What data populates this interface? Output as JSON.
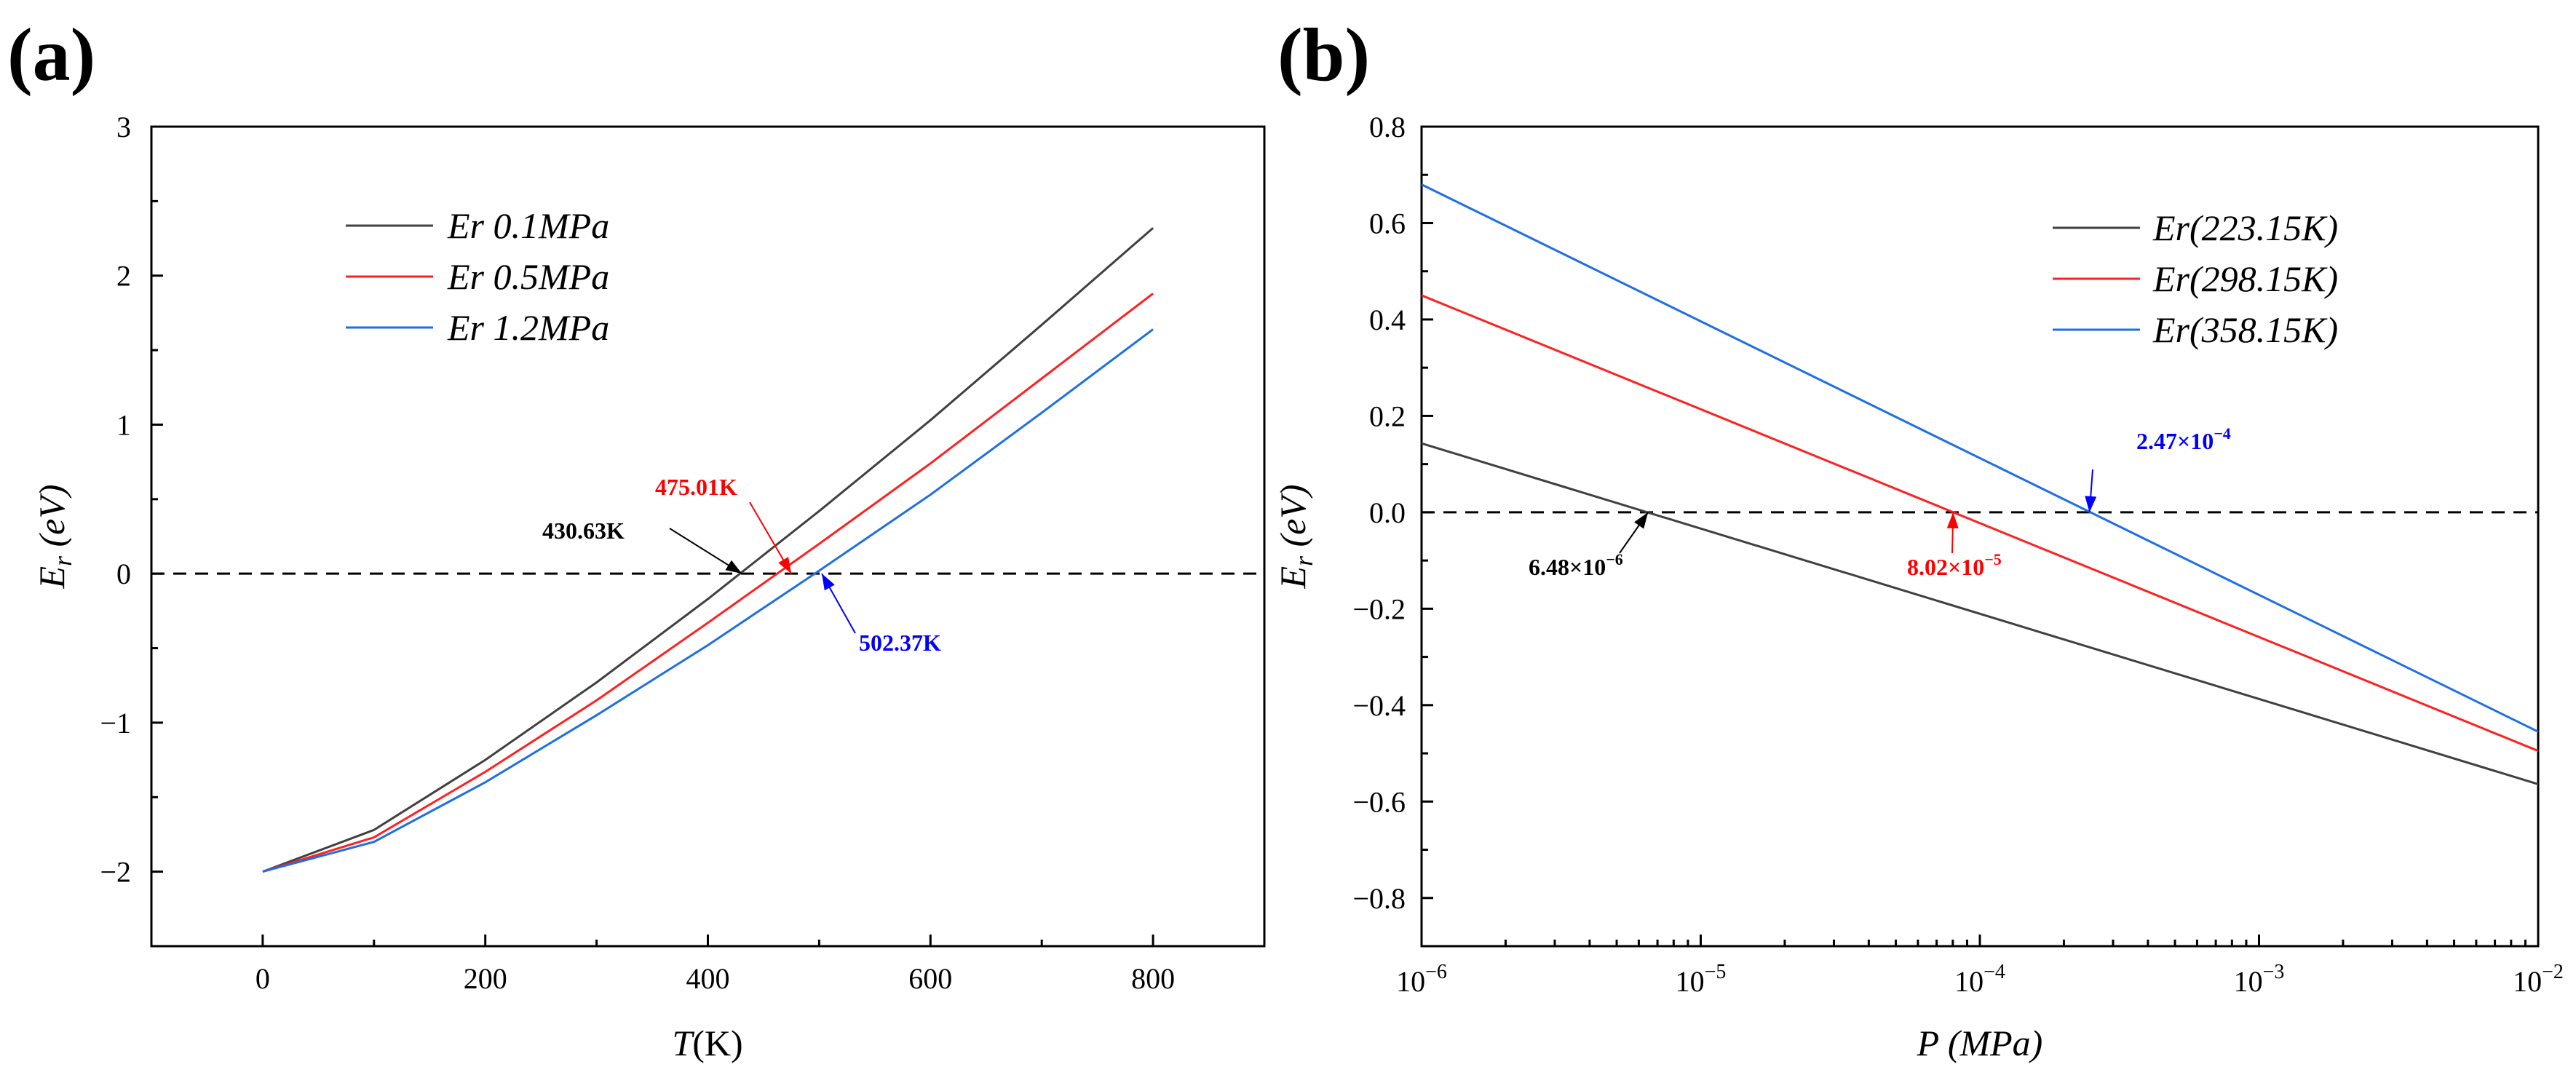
{
  "figure": {
    "panels": [
      "(a)",
      "(b)"
    ]
  },
  "chart_data": [
    {
      "type": "line",
      "panel_label": "(a)",
      "xlabel_main": "T",
      "xlabel_unit": "(K)",
      "ylabel_main": "E",
      "ylabel_sub": "r",
      "ylabel_unit": " (eV)",
      "xlim": [
        -100,
        900
      ],
      "ylim": [
        -2.5,
        3
      ],
      "xscale": "linear",
      "xticks": [
        0,
        200,
        400,
        600,
        800
      ],
      "xtick_labels": [
        "0",
        "200",
        "400",
        "600",
        "800"
      ],
      "yticks": [
        -2,
        -1,
        0,
        1,
        2,
        3
      ],
      "ytick_labels": [
        "−2",
        "−1",
        "0",
        "1",
        "2",
        "3"
      ],
      "reference_line_y": 0,
      "legend_position": "top-left",
      "series": [
        {
          "name": "Er 0.1MPa",
          "color": "#404040",
          "x": [
            0,
            100,
            200,
            300,
            400,
            500,
            600,
            700,
            800
          ],
          "y": [
            -2.0,
            -1.72,
            -1.25,
            -0.73,
            -0.17,
            0.42,
            1.03,
            1.67,
            2.32
          ]
        },
        {
          "name": "Er 0.5MPa",
          "color": "#ff2020",
          "x": [
            0,
            100,
            200,
            300,
            400,
            500,
            600,
            700,
            800
          ],
          "y": [
            -2.0,
            -1.77,
            -1.33,
            -0.85,
            -0.33,
            0.2,
            0.74,
            1.31,
            1.88
          ]
        },
        {
          "name": "Er 1.2MPa",
          "color": "#1e6ee6",
          "x": [
            0,
            100,
            200,
            300,
            400,
            500,
            600,
            700,
            800
          ],
          "y": [
            -2.0,
            -1.8,
            -1.4,
            -0.95,
            -0.48,
            0.02,
            0.53,
            1.08,
            1.64
          ]
        }
      ],
      "annotations": [
        {
          "text": "430.63K",
          "color": "#000000",
          "x": 430.63,
          "y": 0
        },
        {
          "text": "475.01K",
          "color": "#ff0000",
          "x": 475.01,
          "y": 0
        },
        {
          "text": "502.37K",
          "color": "#0000ff",
          "x": 502.37,
          "y": 0
        }
      ]
    },
    {
      "type": "line",
      "panel_label": "(b)",
      "xlabel_main": "P",
      "xlabel_unit": " (MPa)",
      "ylabel_main": "E",
      "ylabel_sub": "r",
      "ylabel_unit": " (eV)",
      "xlim": [
        1e-06,
        0.01
      ],
      "ylim": [
        -0.9,
        0.8
      ],
      "xscale": "log",
      "xtick_exponents": [
        -6,
        -5,
        -4,
        -3,
        -2
      ],
      "xtick_base": "10",
      "xtick_sups": [
        "−6",
        "−5",
        "−4",
        "−3",
        "−2"
      ],
      "yticks": [
        -0.8,
        -0.6,
        -0.4,
        -0.2,
        0,
        0.2,
        0.4,
        0.6,
        0.8
      ],
      "ytick_labels": [
        "−0.8",
        "−0.6",
        "−0.4",
        "−0.2",
        "0.0",
        "0.2",
        "0.4",
        "0.6",
        "0.8"
      ],
      "reference_line_y": 0,
      "legend_position": "top-right",
      "series": [
        {
          "name": "Er(223.15K)",
          "color": "#404040",
          "x": [
            1e-06,
            0.01
          ],
          "y": [
            0.143,
            -0.564
          ]
        },
        {
          "name": "Er(298.15K)",
          "color": "#ff2020",
          "x": [
            1e-06,
            0.01
          ],
          "y": [
            0.45,
            -0.495
          ]
        },
        {
          "name": "Er(358.15K)",
          "color": "#1e6ee6",
          "x": [
            1e-06,
            0.01
          ],
          "y": [
            0.68,
            -0.455
          ]
        }
      ],
      "annotations": [
        {
          "base": "6.48×10",
          "exp": "−6",
          "color": "#000000",
          "x": 6.48e-06,
          "y": 0
        },
        {
          "base": "8.02×10",
          "exp": "−5",
          "color": "#ff0000",
          "x": 8.02e-05,
          "y": 0
        },
        {
          "base": "2.47×10",
          "exp": "−4",
          "color": "#0000ff",
          "x": 0.000247,
          "y": 0
        }
      ]
    }
  ]
}
